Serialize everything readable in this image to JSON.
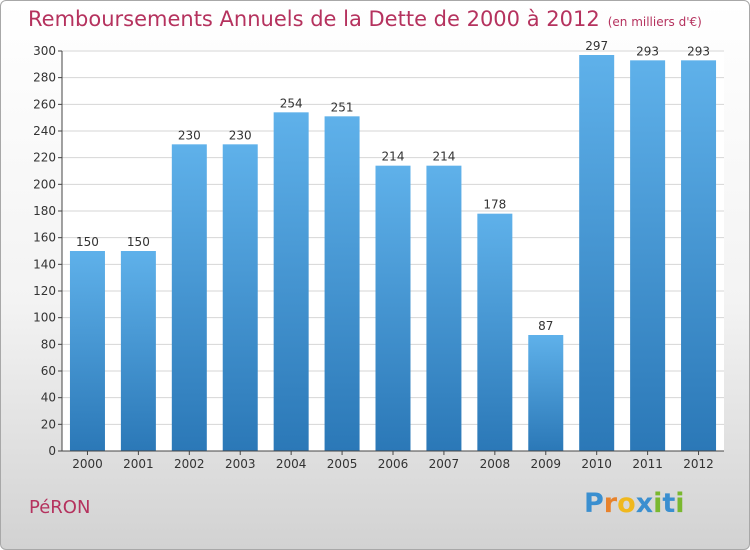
{
  "title": "Remboursements Annuels de la Dette de 2000 à 2012",
  "unit_note": "(en milliers d'€)",
  "commune": "PéRON",
  "brand": {
    "letters": [
      "P",
      "r",
      "o",
      "x",
      "i",
      "t",
      "i"
    ],
    "colors": [
      "#3a8fd0",
      "#e8822b",
      "#f0b81e",
      "#3a8fd0",
      "#7ab82f",
      "#3a8fd0",
      "#7ab82f"
    ]
  },
  "colors": {
    "bar_top": "#5fb1ea",
    "bar_bottom": "#2b78b7",
    "grid": "#d6d6d6",
    "axis": "#444444"
  },
  "chart_data": {
    "type": "bar",
    "title": "Remboursements Annuels de la Dette de 2000 à 2012",
    "subtitle": "(en milliers d'€)",
    "xlabel": "",
    "ylabel": "",
    "categories": [
      "2000",
      "2001",
      "2002",
      "2003",
      "2004",
      "2005",
      "2006",
      "2007",
      "2008",
      "2009",
      "2010",
      "2011",
      "2012"
    ],
    "values": [
      150,
      150,
      230,
      230,
      254,
      251,
      214,
      214,
      178,
      87,
      297,
      293,
      293
    ],
    "data_labels": [
      "150",
      "150",
      "230",
      "230",
      "254",
      "251",
      "214",
      "214",
      "178",
      "87",
      "297",
      "293",
      "293"
    ],
    "ylim": [
      0,
      300
    ],
    "yticks": [
      0,
      20,
      40,
      60,
      80,
      100,
      120,
      140,
      160,
      180,
      200,
      220,
      240,
      260,
      280,
      300
    ],
    "ytick_labels": [
      "0",
      "20",
      "40",
      "60",
      "80",
      "100",
      "120",
      "140",
      "160",
      "180",
      "200",
      "220",
      "240",
      "260",
      "280",
      "300"
    ],
    "grid": true,
    "legend": "none"
  }
}
